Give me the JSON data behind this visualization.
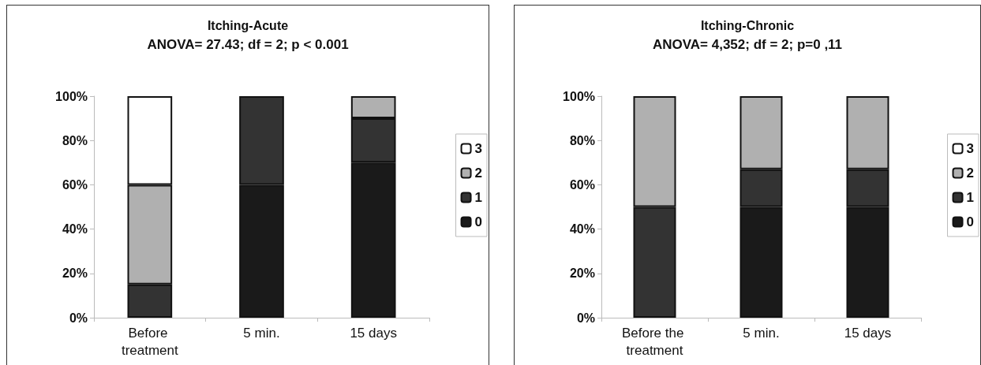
{
  "chart_data": [
    {
      "type": "bar",
      "title": "Itching-Acute",
      "subtitle": "ANOVA= 27.43; df = 2; p < 0.001",
      "categories": [
        "Before treatment",
        "5 min.",
        "15 days"
      ],
      "stacked": true,
      "legend": "right",
      "grid": false,
      "ylim": [
        0,
        100
      ],
      "yticks": [
        {
          "value": 0,
          "label": "0%"
        },
        {
          "value": 20,
          "label": "20%"
        },
        {
          "value": 40,
          "label": "40%"
        },
        {
          "value": 60,
          "label": "60%"
        },
        {
          "value": 80,
          "label": "80%"
        },
        {
          "value": 100,
          "label": "100%"
        }
      ],
      "series": [
        {
          "name": "0",
          "color": "#1a1a1a",
          "values": [
            0,
            60,
            70
          ]
        },
        {
          "name": "1",
          "color": "#333333",
          "values": [
            15,
            40,
            20
          ]
        },
        {
          "name": "2",
          "color": "#b0b0b0",
          "values": [
            45,
            0,
            10
          ]
        },
        {
          "name": "3",
          "color": "#ffffff",
          "values": [
            40,
            0,
            0
          ]
        }
      ]
    },
    {
      "type": "bar",
      "title": "Itching-Chronic",
      "subtitle": "ANOVA= 4,352; df = 2; p=0 ,11",
      "categories": [
        "Before the treatment",
        "5 min.",
        "15 days"
      ],
      "stacked": true,
      "legend": "right",
      "grid": false,
      "ylim": [
        0,
        100
      ],
      "yticks": [
        {
          "value": 0,
          "label": "0%"
        },
        {
          "value": 20,
          "label": "20%"
        },
        {
          "value": 40,
          "label": "40%"
        },
        {
          "value": 60,
          "label": "60%"
        },
        {
          "value": 80,
          "label": "80%"
        },
        {
          "value": 100,
          "label": "100%"
        }
      ],
      "series": [
        {
          "name": "0",
          "color": "#1a1a1a",
          "values": [
            0,
            50,
            50
          ]
        },
        {
          "name": "1",
          "color": "#333333",
          "values": [
            50,
            17,
            17
          ]
        },
        {
          "name": "2",
          "color": "#b0b0b0",
          "values": [
            50,
            33,
            33
          ]
        },
        {
          "name": "3",
          "color": "#ffffff",
          "values": [
            0,
            0,
            0
          ]
        }
      ]
    }
  ]
}
